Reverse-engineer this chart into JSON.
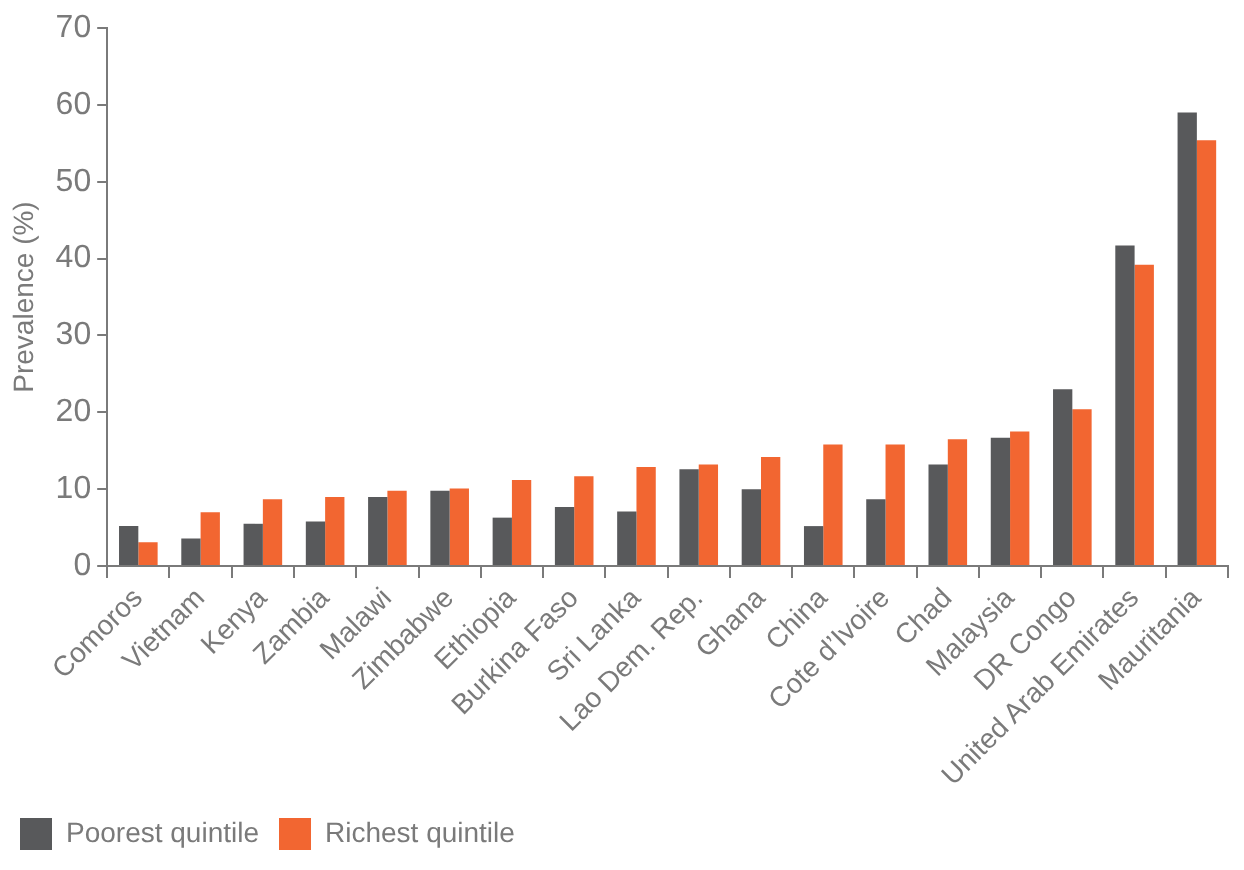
{
  "chart_data": {
    "type": "bar",
    "ylabel": "Prevalence (%)",
    "categories": [
      "Comoros",
      "Vietnam",
      "Kenya",
      "Zambia",
      "Malawi",
      "Zimbabwe",
      "Ethiopia",
      "Burkina Faso",
      "Sri Lanka",
      "Lao Dem. Rep.",
      "Ghana",
      "China",
      "Cote d’Ivoire",
      "Chad",
      "Malaysia",
      "DR Congo",
      "United Arab Emirates",
      "Mauritania"
    ],
    "series": [
      {
        "name": "Poorest quintile",
        "color": "#58595b",
        "values": [
          5.2,
          3.6,
          5.5,
          5.8,
          9.0,
          9.8,
          6.3,
          7.7,
          7.1,
          12.6,
          10.0,
          5.2,
          8.7,
          13.2,
          16.7,
          23.0,
          41.7,
          59.0
        ]
      },
      {
        "name": "Richest quintile",
        "color": "#f26631",
        "values": [
          3.1,
          7.0,
          8.7,
          9.0,
          9.8,
          10.1,
          11.2,
          11.7,
          12.9,
          13.2,
          14.2,
          15.8,
          15.8,
          16.5,
          17.5,
          20.4,
          39.2,
          55.4
        ]
      }
    ],
    "ylim": [
      0,
      70
    ],
    "yticks": [
      0,
      10,
      20,
      30,
      40,
      50,
      60,
      70
    ],
    "grid": false,
    "legend": "bottom left"
  }
}
